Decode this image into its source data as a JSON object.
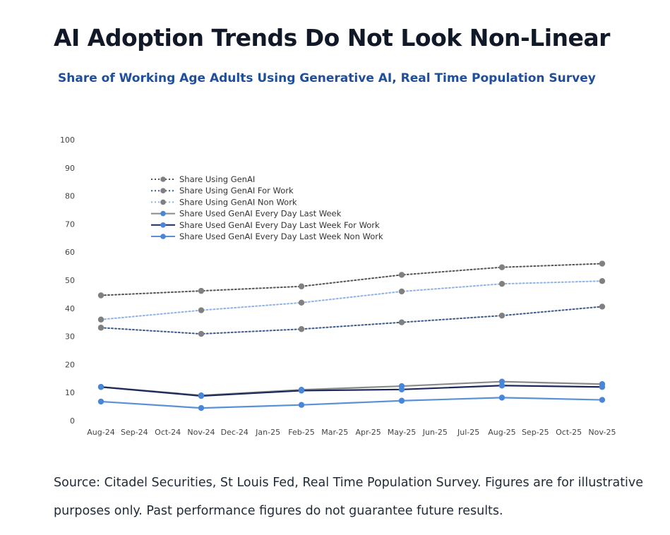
{
  "header": {
    "title": "AI Adoption Trends Do Not Look Non-Linear",
    "subtitle": "Share of Working Age Adults Using Generative AI, Real Time Population Survey"
  },
  "footer": {
    "source": "Source: Citadel Securities, St Louis Fed, Real Time Population Survey. Figures are for illustrative purposes only. Past performance figures do not guarantee future results."
  },
  "chart_data": {
    "type": "line",
    "title": "",
    "xlabel": "",
    "ylabel": "",
    "ylim": [
      0,
      100
    ],
    "yticks": [
      0,
      10,
      20,
      30,
      40,
      50,
      60,
      70,
      80,
      90,
      100
    ],
    "grid": false,
    "legend_position": "top-left",
    "categories": [
      "Aug-24",
      "Sep-24",
      "Oct-24",
      "Nov-24",
      "Dec-24",
      "Jan-25",
      "Feb-25",
      "Mar-25",
      "Apr-25",
      "May-25",
      "Jun-25",
      "Jul-25",
      "Aug-25",
      "Sep-25",
      "Oct-25",
      "Nov-25"
    ],
    "series": [
      {
        "name": "Share Using GenAI",
        "color": "#555555",
        "marker_color": "#808080",
        "style": "dotted",
        "values": [
          44.6,
          null,
          null,
          46.2,
          null,
          null,
          47.8,
          null,
          null,
          51.9,
          null,
          null,
          54.6,
          null,
          null,
          55.9
        ]
      },
      {
        "name": "Share Using GenAI For Work",
        "color": "#3d5a8a",
        "marker_color": "#808080",
        "style": "dotted",
        "values": [
          33.1,
          null,
          null,
          30.9,
          null,
          null,
          32.6,
          null,
          null,
          35.0,
          null,
          null,
          37.4,
          null,
          null,
          40.6
        ]
      },
      {
        "name": "Share Using GenAI Non Work",
        "color": "#8fb3e6",
        "marker_color": "#808080",
        "style": "dotted",
        "values": [
          36.0,
          null,
          null,
          39.3,
          null,
          null,
          42.0,
          null,
          null,
          46.0,
          null,
          null,
          48.7,
          null,
          null,
          49.7
        ]
      },
      {
        "name": "Share Used GenAI Every Day Last Week",
        "color": "#8a8a8a",
        "marker_color": "#4a86d8",
        "style": "solid",
        "values": [
          12.0,
          null,
          null,
          9.0,
          null,
          null,
          11.0,
          null,
          null,
          12.3,
          null,
          null,
          13.9,
          null,
          null,
          13.0
        ]
      },
      {
        "name": "Share Used GenAI Every Day Last Week For Work",
        "color": "#1b2a5a",
        "marker_color": "#4a86d8",
        "style": "solid",
        "values": [
          12.0,
          null,
          null,
          8.8,
          null,
          null,
          10.7,
          null,
          null,
          11.1,
          null,
          null,
          12.5,
          null,
          null,
          12.0
        ]
      },
      {
        "name": "Share Used GenAI Every Day Last Week Non Work",
        "color": "#5b90d9",
        "marker_color": "#4a86d8",
        "style": "solid",
        "values": [
          6.8,
          null,
          null,
          4.5,
          null,
          null,
          5.6,
          null,
          null,
          7.1,
          null,
          null,
          8.2,
          null,
          null,
          7.4
        ]
      }
    ]
  }
}
